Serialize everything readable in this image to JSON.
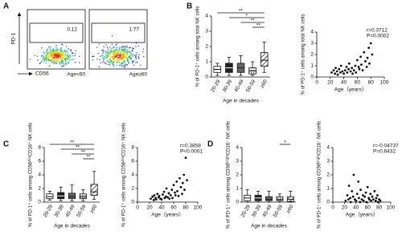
{
  "chart_data": [
    {
      "type": "flow",
      "panel": "A",
      "y_label": "PD-1",
      "x_label": "CD56",
      "plots": [
        {
          "name": "Age<60",
          "gate_percent": 0.12
        },
        {
          "name": "Age≥60",
          "gate_percent": 1.77
        }
      ]
    },
    {
      "type": "box",
      "panel": "B",
      "y_label": "% of PD-1⁺ cells among total NK cells",
      "x_label": "Age in decades",
      "categories": [
        "20-29",
        "30-39",
        "40-49",
        "50-59",
        "≥60"
      ],
      "min": [
        0.1,
        0.1,
        0.1,
        0.1,
        0.3
      ],
      "q1": [
        0.3,
        0.3,
        0.3,
        0.2,
        0.7
      ],
      "median": [
        0.5,
        0.6,
        0.6,
        0.4,
        1.1
      ],
      "q3": [
        0.7,
        0.9,
        0.9,
        0.6,
        1.6
      ],
      "max": [
        0.9,
        1.3,
        1.4,
        1.0,
        2.3
      ],
      "colors": [
        "#ffffff",
        "#222222",
        "#666666",
        "#dddddd",
        "#ffffff"
      ],
      "patterns": [
        "none",
        "none",
        "none",
        "dots",
        "hatch"
      ],
      "ylim": [
        0,
        4
      ],
      "yticks": [
        0,
        1,
        2,
        3,
        4
      ],
      "significance": [
        {
          "groups": [
            0,
            4
          ],
          "label": "**"
        },
        {
          "groups": [
            1,
            4
          ],
          "label": "*"
        },
        {
          "groups": [
            2,
            4
          ],
          "label": "**"
        },
        {
          "groups": [
            3,
            4
          ],
          "label": "**"
        }
      ]
    },
    {
      "type": "scatter",
      "y_label": "% of PD-1⁺ cells among total NK cells",
      "x_label": "Age（years）",
      "stats": [
        "r=0.3712",
        "P=0.0002"
      ],
      "stats_color": "#e8202a",
      "x": [
        22,
        25,
        27,
        28,
        30,
        31,
        33,
        35,
        36,
        38,
        40,
        42,
        44,
        45,
        47,
        48,
        50,
        52,
        53,
        55,
        57,
        58,
        60,
        62,
        63,
        65,
        66,
        68,
        70,
        72,
        74,
        75,
        77,
        78,
        80,
        82
      ],
      "y": [
        0.4,
        0.6,
        0.3,
        0.8,
        0.5,
        0.2,
        0.7,
        0.4,
        1.0,
        0.5,
        0.3,
        0.6,
        0.9,
        0.4,
        0.7,
        1.2,
        0.5,
        0.8,
        0.3,
        0.6,
        1.0,
        0.4,
        1.5,
        0.9,
        0.7,
        1.8,
        1.1,
        0.6,
        2.2,
        1.4,
        0.9,
        1.7,
        2.6,
        1.2,
        3.0,
        2.0
      ],
      "xlim": [
        0,
        100
      ],
      "xticks": [
        0,
        20,
        40,
        60,
        80,
        100
      ],
      "ylim": [
        0,
        4
      ],
      "yticks": [
        0,
        1,
        2,
        3,
        4
      ]
    },
    {
      "type": "box",
      "panel": "C",
      "y_label": "% of PD-1⁺ cells among CD56ᵈⁱᵐCD16⁺ NK cells",
      "x_label": "Age in decades",
      "categories": [
        "20-29",
        "30-39",
        "40-49",
        "50-59",
        "≥60"
      ],
      "min": [
        0.3,
        0.2,
        0.2,
        0.2,
        0.4
      ],
      "q1": [
        0.5,
        0.5,
        0.5,
        0.5,
        1.0
      ],
      "median": [
        0.8,
        0.9,
        0.8,
        0.8,
        1.5
      ],
      "q3": [
        1.2,
        1.4,
        1.3,
        1.2,
        2.6
      ],
      "max": [
        1.6,
        2.2,
        2.5,
        1.8,
        4.5
      ],
      "colors": [
        "#ffffff",
        "#222222",
        "#666666",
        "#dddddd",
        "#ffffff"
      ],
      "patterns": [
        "none",
        "none",
        "none",
        "dots",
        "hatch"
      ],
      "ylim": [
        0,
        8
      ],
      "yticks": [
        0,
        2,
        4,
        6,
        8
      ],
      "significance": [
        {
          "groups": [
            0,
            4
          ],
          "label": "**"
        },
        {
          "groups": [
            1,
            4
          ],
          "label": "**"
        },
        {
          "groups": [
            2,
            4
          ],
          "label": "**"
        },
        {
          "groups": [
            3,
            4
          ],
          "label": "**"
        }
      ]
    },
    {
      "type": "scatter",
      "y_label": "% of PD-1⁺ cells among CD56ᵈⁱᵐCD16⁺ NK cells",
      "x_label": "Age（years）",
      "stats": [
        "r=0.3858",
        "P<0.0001"
      ],
      "stats_color": "#e8202a",
      "x": [
        22,
        25,
        27,
        28,
        30,
        31,
        33,
        35,
        36,
        38,
        40,
        42,
        44,
        45,
        47,
        48,
        50,
        52,
        53,
        55,
        57,
        58,
        60,
        62,
        63,
        65,
        66,
        68,
        70,
        72,
        74,
        75,
        77,
        78,
        80,
        82
      ],
      "y": [
        0.5,
        0.8,
        0.3,
        1.0,
        0.6,
        0.4,
        1.2,
        0.7,
        0.9,
        0.5,
        0.4,
        1.1,
        1.5,
        0.6,
        0.8,
        2.0,
        0.7,
        1.3,
        0.5,
        1.0,
        1.8,
        0.6,
        2.5,
        1.4,
        1.0,
        3.0,
        1.6,
        0.9,
        3.5,
        2.2,
        1.2,
        2.8,
        4.0,
        1.8,
        6.5,
        3.2
      ],
      "xlim": [
        0,
        100
      ],
      "xticks": [
        0,
        20,
        40,
        60,
        80,
        100
      ],
      "ylim": [
        0,
        8
      ],
      "yticks": [
        0,
        2,
        4,
        6,
        8
      ]
    },
    {
      "type": "box",
      "panel": "D",
      "y_label": "% of PD-1⁺ cells among CD56ᵇʳⁱᵍʰᵗCD16⁻ NK cells",
      "x_label": "Age in decades",
      "categories": [
        "20-29",
        "30-39",
        "40-49",
        "50-59",
        "≥60"
      ],
      "min": [
        0,
        0,
        0,
        0,
        0
      ],
      "q1": [
        0.1,
        0.1,
        0.1,
        0.1,
        0.05
      ],
      "median": [
        0.3,
        0.3,
        0.2,
        0.2,
        0.2
      ],
      "q3": [
        0.5,
        0.5,
        0.4,
        0.4,
        0.4
      ],
      "max": [
        0.9,
        0.8,
        0.8,
        0.6,
        0.8
      ],
      "colors": [
        "#ffffff",
        "#222222",
        "#666666",
        "#dddddd",
        "#ffffff"
      ],
      "patterns": [
        "none",
        "none",
        "none",
        "dots",
        "hatch"
      ],
      "ylim": [
        0,
        4
      ],
      "yticks": [
        0,
        1,
        2,
        3,
        4
      ],
      "significance": [
        {
          "groups": [
            3,
            4
          ],
          "label": "*"
        }
      ]
    },
    {
      "type": "scatter",
      "y_label": "% of PD-1⁺ cells among CD56ᵇʳⁱᵍʰᵗCD16⁻ NK cells",
      "x_label": "Age（years）",
      "stats": [
        "r=-0.04737",
        "P=0.6432"
      ],
      "stats_color": "#222222",
      "x": [
        22,
        25,
        27,
        28,
        30,
        31,
        33,
        35,
        36,
        38,
        40,
        42,
        44,
        45,
        47,
        48,
        50,
        52,
        53,
        55,
        57,
        58,
        60,
        62,
        63,
        65,
        66,
        68,
        70,
        72,
        74,
        75,
        77,
        78,
        80,
        82
      ],
      "y": [
        0.1,
        0.5,
        0.2,
        1.2,
        0.3,
        0.0,
        0.8,
        0.4,
        2.0,
        0.2,
        0.1,
        0.6,
        1.5,
        0.3,
        0.0,
        0.9,
        0.2,
        0.5,
        0.1,
        0.4,
        0.7,
        0.0,
        1.1,
        0.3,
        0.2,
        0.6,
        0.1,
        0.4,
        0.2,
        0.8,
        0.1,
        0.3,
        0.5,
        0.0,
        0.2,
        0.1
      ],
      "xlim": [
        0,
        100
      ],
      "xticks": [
        0,
        20,
        40,
        60,
        80,
        100
      ],
      "ylim": [
        0,
        4
      ],
      "yticks": [
        0,
        1,
        2,
        3,
        4
      ]
    }
  ]
}
